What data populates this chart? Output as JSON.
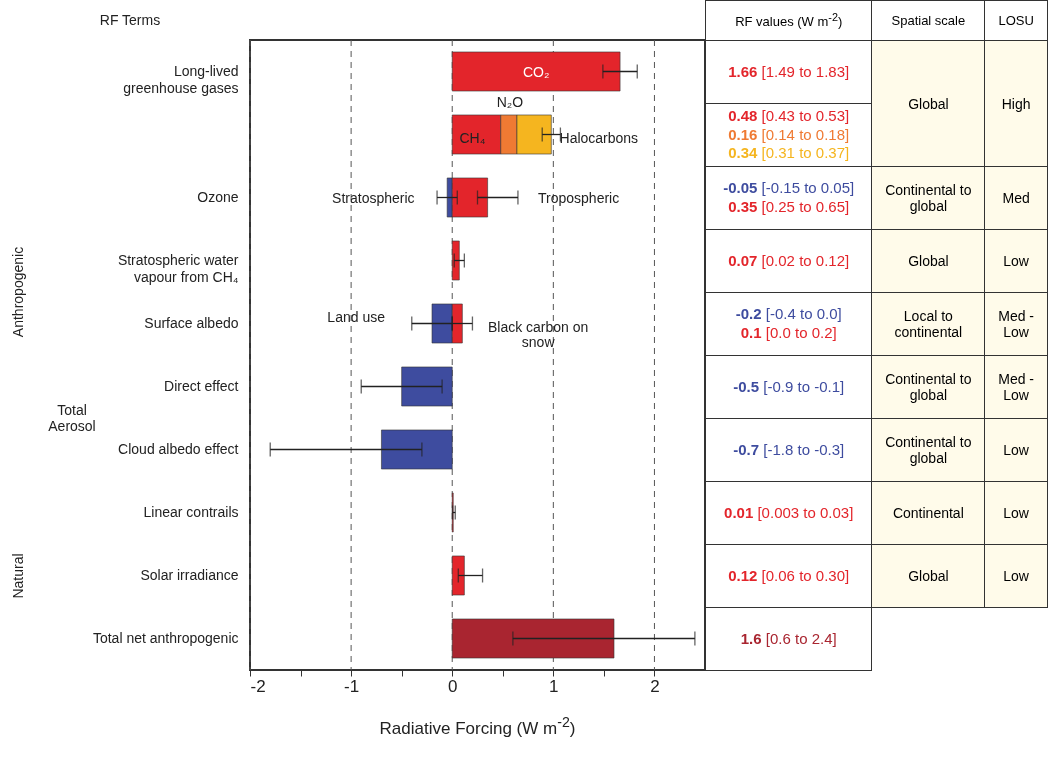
{
  "chart_data": {
    "type": "bar",
    "orientation": "horizontal",
    "stacked": true,
    "categories": [
      "Long-lived greenhouse gases",
      null,
      "Ozone",
      "Stratospheric water vapour from CH₄",
      "Surface albedo",
      "Direct effect",
      "Cloud albedo effect",
      "Linear contrails",
      "Solar irradiance",
      "Total net anthropogenic"
    ],
    "series": [
      {
        "color": "#3e4c9f",
        "values": [
          null,
          null,
          -0.05,
          null,
          -0.2,
          -0.5,
          -0.7,
          null,
          null,
          null
        ],
        "errors": [
          null,
          null,
          [
            -0.15,
            0.05
          ],
          null,
          [
            -0.4,
            0.0
          ],
          [
            -0.9,
            -0.1
          ],
          [
            -1.8,
            -0.3
          ],
          null,
          null,
          null
        ]
      },
      {
        "color": "#e3252b",
        "values": [
          1.66,
          0.48,
          0.35,
          0.07,
          0.1,
          null,
          null,
          0.01,
          0.12,
          null
        ],
        "errors": [
          [
            1.49,
            1.83
          ],
          null,
          [
            0.25,
            0.65
          ],
          [
            0.02,
            0.12
          ],
          [
            0.0,
            0.2
          ],
          null,
          null,
          [
            0.003,
            0.03
          ],
          [
            0.06,
            0.3
          ],
          null
        ]
      },
      {
        "color": "#ef7a33",
        "values": [
          null,
          0.16,
          null,
          null,
          null,
          null,
          null,
          null,
          null,
          null
        ]
      },
      {
        "color": "#f5b51f",
        "values": [
          null,
          0.34,
          null,
          null,
          null,
          null,
          null,
          null,
          null,
          null
        ],
        "errors": [
          null,
          [
            0.89,
            1.07
          ],
          null,
          null,
          null,
          null,
          null,
          null,
          null,
          null
        ]
      },
      {
        "color": "#a92530",
        "values": [
          null,
          null,
          null,
          null,
          null,
          null,
          null,
          null,
          null,
          1.6
        ],
        "errors": [
          null,
          null,
          null,
          null,
          null,
          null,
          null,
          null,
          null,
          [
            0.6,
            2.4
          ]
        ]
      }
    ],
    "xlim": [
      -2,
      2.5
    ],
    "xticks": [
      -2,
      {
        "value": -1.5,
        "label": null
      },
      -1,
      {
        "value": -0.5,
        "label": null
      },
      0,
      {
        "value": 0.5,
        "label": null
      },
      1,
      {
        "value": 1.5,
        "label": null
      },
      2
    ],
    "xlabel": "Radiative Forcing (W m$^{-2}$)",
    "grid": "x",
    "annotations": [
      "RF Terms",
      "RF values (W m$^{-2}$)",
      "Spatial scale",
      "LOSU",
      "Global",
      "High",
      "Continental to global",
      "Med",
      "Global",
      "Low",
      "Local to continental",
      "Med - Low",
      "Continental to global",
      "Med - Low",
      "Continental to global",
      "Low",
      "Continental",
      "Low",
      "Global",
      "Low",
      "Total Aerosol",
      "Anthropogenic",
      "Natural",
      "CH₄",
      "N₂O",
      "Halocarbons",
      "CO₂",
      "Stratospheric",
      "Tropospheric",
      "Land use",
      "Black carbon on snow",
      "1.66 [1.49 to 1.83]",
      "0.48 [0.43 to 0.53]",
      "0.16 [0.14 to 0.18]",
      "0.34 [0.31 to 0.37]",
      "-0.05 [-0.15 to 0.05]",
      "0.35 [0.25 to 0.65]",
      "0.07 [0.02 to 0.12]",
      "-0.2 [-0.4 to 0.0]",
      "0.1 [0.0 to 0.2]",
      "-0.5 [-0.9 to -0.1]",
      "-0.7 [-1.8 to -0.3]",
      "0.01 [0.003 to 0.03]",
      "0.12 [0.06 to 0.30]",
      "1.6 [0.6 to 2.4]"
    ]
  }
}
